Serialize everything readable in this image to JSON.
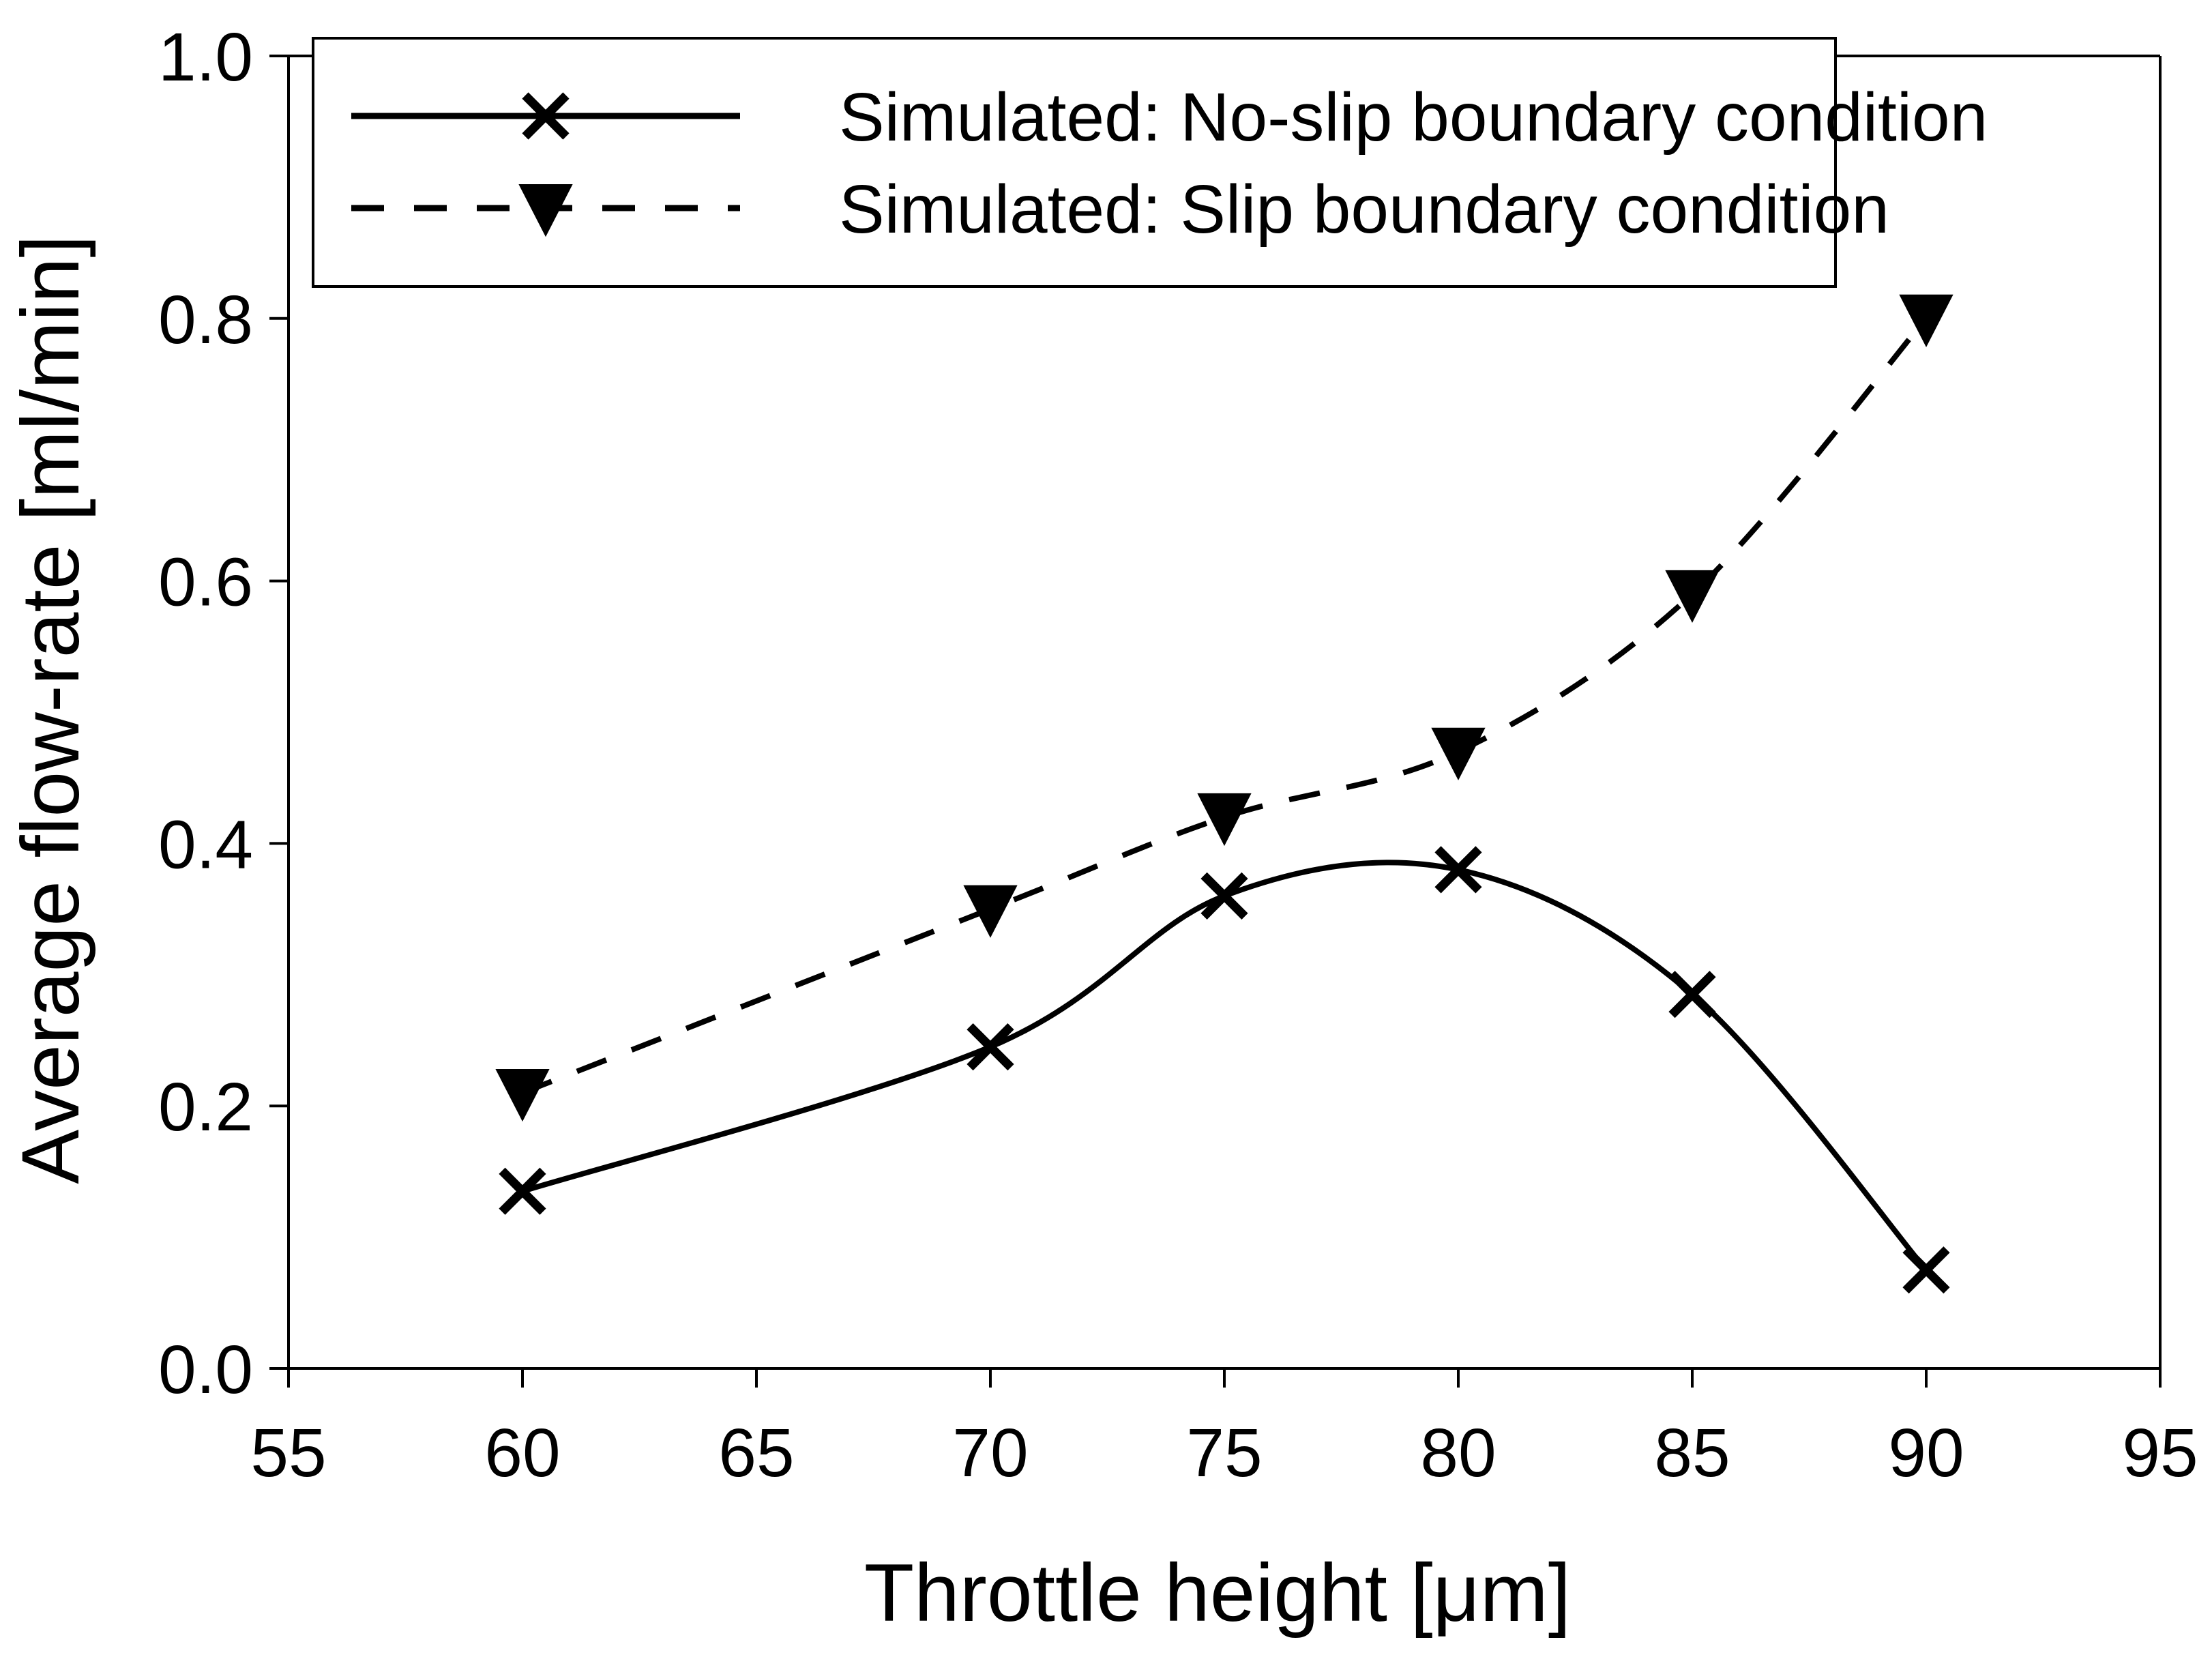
{
  "chart_data": {
    "type": "line",
    "title": "",
    "xlabel": "Throttle height [μm]",
    "ylabel": "Average flow-rate [ml/min]",
    "xlim": [
      55,
      95
    ],
    "ylim": [
      0.0,
      1.0
    ],
    "xticks": [
      55,
      60,
      65,
      70,
      75,
      80,
      85,
      90,
      95
    ],
    "yticks": [
      0.0,
      0.2,
      0.4,
      0.6,
      0.8,
      1.0
    ],
    "xtick_labels": [
      "55",
      "60",
      "65",
      "70",
      "75",
      "80",
      "85",
      "90",
      "95"
    ],
    "ytick_labels": [
      "0.0",
      "0.2",
      "0.4",
      "0.6",
      "0.8",
      "1.0"
    ],
    "grid": false,
    "legend_position": "top",
    "x": [
      60,
      70,
      75,
      80,
      85,
      90
    ],
    "series": [
      {
        "name": "Simulated: No-slip boundary condition",
        "values": [
          0.135,
          0.245,
          0.36,
          0.38,
          0.285,
          0.075
        ],
        "line_style": "solid",
        "marker": "x",
        "color": "#000000"
      },
      {
        "name": "Simulated: Slip boundary condition",
        "values": [
          0.21,
          0.35,
          0.42,
          0.47,
          0.59,
          0.8
        ],
        "line_style": "dashed",
        "marker": "triangle-down",
        "color": "#000000"
      }
    ]
  }
}
